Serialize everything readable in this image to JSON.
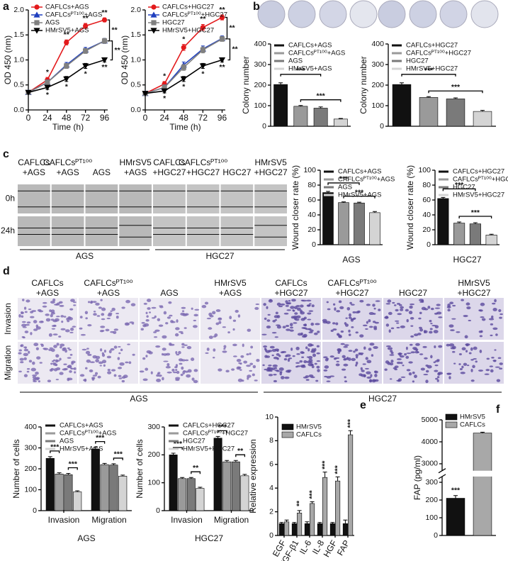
{
  "chart_data": [
    {
      "type": "line",
      "panel": "a",
      "x": [
        0,
        24,
        48,
        72,
        96
      ],
      "xlim": [
        0,
        100
      ],
      "xticks": [
        0,
        24,
        48,
        72,
        96
      ],
      "ylim": [
        0,
        2
      ],
      "yticks": [
        {
          "value": 0,
          "label": "0.0"
        },
        {
          "value": 0.5,
          "label": "0.5"
        },
        {
          "value": 1,
          "label": "1.0"
        },
        {
          "value": 1.5,
          "label": "1.5"
        },
        {
          "value": 2,
          "label": "2.0"
        }
      ],
      "xlabel": "Time (h)",
      "ylabel": "OD 450 (nm)",
      "series": [
        {
          "name": "CAFLCs+AGS",
          "color": "#e31a1c",
          "marker": "circle",
          "values": [
            0.35,
            0.6,
            1.35,
            1.68,
            1.8
          ],
          "errors": [
            0.02,
            0.05,
            0.05,
            0.05,
            0.04
          ],
          "significance": [
            null,
            "*",
            "**",
            "**",
            "**"
          ]
        },
        {
          "name": "CAFLCsᴾᵀ¹⁰⁰+AGS",
          "color": "#1f3fbf",
          "marker": "triangle",
          "values": [
            0.35,
            0.55,
            0.9,
            1.2,
            1.38
          ],
          "errors": [
            0.02,
            0.05,
            0.05,
            0.05,
            0.05
          ],
          "significance": [
            null,
            null,
            null,
            null,
            null
          ]
        },
        {
          "name": "AGS",
          "color": "#808080",
          "marker": "square",
          "values": [
            0.35,
            0.55,
            0.88,
            1.18,
            1.38
          ],
          "errors": [
            0.02,
            0.05,
            0.05,
            0.05,
            0.05
          ],
          "significance": [
            null,
            null,
            null,
            null,
            null
          ]
        },
        {
          "name": "HMrSV5+AGS",
          "color": "#000000",
          "marker": "triangle-down",
          "values": [
            0.35,
            0.45,
            0.62,
            0.88,
            1.0
          ],
          "errors": [
            0.02,
            0.04,
            0.05,
            0.05,
            0.04
          ],
          "significance": [
            null,
            "*",
            "*",
            "*",
            "**"
          ]
        }
      ],
      "brackets": [
        {
          "from": 0,
          "to": 2,
          "label": "**"
        },
        {
          "from": 2,
          "to": 3,
          "label": "**"
        }
      ]
    },
    {
      "type": "line",
      "x": [
        0,
        24,
        48,
        72,
        96
      ],
      "xlim": [
        0,
        100
      ],
      "xticks": [
        0,
        24,
        48,
        72,
        96
      ],
      "ylim": [
        0,
        2
      ],
      "yticks": [
        {
          "value": 0,
          "label": "0.0"
        },
        {
          "value": 0.5,
          "label": "0.5"
        },
        {
          "value": 1,
          "label": "1.0"
        },
        {
          "value": 1.5,
          "label": "1.5"
        },
        {
          "value": 2,
          "label": "2.0"
        }
      ],
      "xlabel": "Time (h)",
      "ylabel": "OD 450 (nm)",
      "series": [
        {
          "name": "CAFLCs+HGC27",
          "color": "#e31a1c",
          "marker": "circle",
          "values": [
            0.33,
            0.52,
            1.25,
            1.65,
            1.85
          ],
          "errors": [
            0.02,
            0.05,
            0.06,
            0.06,
            0.05
          ],
          "significance": [
            null,
            "*",
            "*",
            "**",
            "**"
          ]
        },
        {
          "name": "CAFLCsᴾᵀ¹⁰⁰+HGC27",
          "color": "#1f3fbf",
          "marker": "triangle",
          "values": [
            0.33,
            0.45,
            0.9,
            1.22,
            1.43
          ],
          "errors": [
            0.02,
            0.05,
            0.06,
            0.06,
            0.05
          ],
          "significance": [
            null,
            null,
            null,
            null,
            null
          ]
        },
        {
          "name": "HGC27",
          "color": "#808080",
          "marker": "square",
          "values": [
            0.33,
            0.45,
            0.85,
            1.2,
            1.42
          ],
          "errors": [
            0.02,
            0.05,
            0.06,
            0.06,
            0.05
          ],
          "significance": [
            null,
            null,
            null,
            null,
            null
          ]
        },
        {
          "name": "HMrSV5+HGC27",
          "color": "#000000",
          "marker": "triangle-down",
          "values": [
            0.33,
            0.38,
            0.62,
            0.88,
            1.0
          ],
          "errors": [
            0.02,
            0.04,
            0.05,
            0.05,
            0.04
          ],
          "significance": [
            null,
            "*",
            "*",
            "*",
            "**"
          ]
        }
      ],
      "brackets": [
        {
          "from": 0,
          "to": 2,
          "label": "**"
        },
        {
          "from": 2,
          "to": 3,
          "label": "**"
        }
      ]
    },
    {
      "type": "bar",
      "panel": "b",
      "categories": [
        "CAFLCs+AGS",
        "CAFLCsᴾᵀ¹⁰⁰+AGS",
        "AGS",
        "HMrSV5+AGS"
      ],
      "values": [
        203,
        97,
        88,
        35
      ],
      "errors": [
        8,
        4,
        6,
        3
      ],
      "colors": [
        "#111111",
        "#9a9a9a",
        "#7a7a7a",
        "#d4d4d4"
      ],
      "ylim": [
        0,
        400
      ],
      "yticks": [
        0,
        100,
        200,
        300,
        400
      ],
      "ylabel": "Colony number",
      "brackets": [
        {
          "from": 0,
          "to": 2,
          "label": "***"
        },
        {
          "from": 1,
          "to": 3,
          "label": "***"
        }
      ]
    },
    {
      "type": "bar",
      "categories": [
        "CAFLCs+HGC27",
        "CAFLCsᴾᵀ¹⁰⁰+HGC27",
        "HGC27",
        "HMrSV5+HGC27"
      ],
      "values": [
        203,
        140,
        133,
        72
      ],
      "errors": [
        8,
        4,
        5,
        5
      ],
      "colors": [
        "#111111",
        "#9a9a9a",
        "#7a7a7a",
        "#d4d4d4"
      ],
      "ylim": [
        0,
        400
      ],
      "yticks": [
        0,
        100,
        200,
        300,
        400
      ],
      "ylabel": "Colony number",
      "brackets": [
        {
          "from": 0,
          "to": 2,
          "label": "***"
        },
        {
          "from": 1,
          "to": 3,
          "label": "***"
        }
      ]
    },
    {
      "type": "bar",
      "categories": [
        "CAFLCs+AGS",
        "CAFLCsᴾᵀ¹⁰⁰+AGS",
        "AGS",
        "HMrSV5+AGS"
      ],
      "values": [
        70,
        56.5,
        56,
        43
      ],
      "errors": [
        1.5,
        1,
        1,
        1.5
      ],
      "colors": [
        "#111111",
        "#9a9a9a",
        "#7a7a7a",
        "#d4d4d4"
      ],
      "ylim": [
        0,
        100
      ],
      "yticks": [
        0,
        20,
        40,
        60,
        80,
        100
      ],
      "ylabel": "Wound closer rate (%)",
      "xlabel": "AGS",
      "brackets": [
        {
          "from": 0,
          "to": 2,
          "label": "***"
        },
        {
          "from": 1,
          "to": 3,
          "label": "***"
        }
      ]
    },
    {
      "type": "bar",
      "categories": [
        "CAFLCs+HGC27",
        "CAFLCsᴾᵀ¹⁰⁰+HGC27",
        "HGC27",
        "HMrSV5+HGC27"
      ],
      "values": [
        62,
        29,
        28,
        13
      ],
      "errors": [
        1.5,
        1.5,
        1.5,
        1
      ],
      "colors": [
        "#111111",
        "#9a9a9a",
        "#7a7a7a",
        "#d4d4d4"
      ],
      "ylim": [
        0,
        100
      ],
      "yticks": [
        0,
        20,
        40,
        60,
        80,
        100
      ],
      "ylabel": "Wound closer rate (%)",
      "xlabel": "HGC27",
      "brackets": [
        {
          "from": 0,
          "to": 2,
          "label": "***"
        },
        {
          "from": 1,
          "to": 3,
          "label": "***"
        }
      ]
    },
    {
      "type": "grouped_bar",
      "categories": [
        "Invasion",
        "Migration"
      ],
      "ylim": [
        0,
        400
      ],
      "yticks": [
        0,
        100,
        200,
        300,
        400
      ],
      "ylabel": "Number of cells",
      "xlabel": "AGS",
      "series": [
        {
          "name": "CAFLCs+AGS",
          "color": "#111111",
          "values": [
            250,
            295
          ],
          "errors": [
            8,
            8
          ]
        },
        {
          "name": "CAFLCsᴾᵀ¹⁰⁰+AGS",
          "color": "#9a9a9a",
          "values": [
            175,
            220
          ],
          "errors": [
            6,
            6
          ]
        },
        {
          "name": "AGS",
          "color": "#7a7a7a",
          "values": [
            172,
            218
          ],
          "errors": [
            6,
            6
          ]
        },
        {
          "name": "HMrSV5+AGS",
          "color": "#d4d4d4",
          "values": [
            90,
            165
          ],
          "errors": [
            5,
            5
          ]
        }
      ],
      "brackets": [
        {
          "category": 0,
          "from": 0,
          "to": 1,
          "label": "***"
        },
        {
          "category": 0,
          "from": 2,
          "to": 3,
          "label": "***"
        },
        {
          "category": 1,
          "from": 0,
          "to": 1,
          "label": "***"
        },
        {
          "category": 1,
          "from": 2,
          "to": 3,
          "label": "***"
        }
      ]
    },
    {
      "type": "grouped_bar",
      "categories": [
        "Invasion",
        "Migration"
      ],
      "ylim": [
        0,
        300
      ],
      "yticks": [
        0,
        100,
        200,
        300
      ],
      "ylabel": "Number of cells",
      "xlabel": "HGC27",
      "series": [
        {
          "name": "CAFLCs+HGC27",
          "color": "#111111",
          "values": [
            200,
            260
          ],
          "errors": [
            6,
            6
          ]
        },
        {
          "name": "CAFLCsᴾᵀ¹⁰⁰+HGC27",
          "color": "#9a9a9a",
          "values": [
            115,
            175
          ],
          "errors": [
            4,
            5
          ]
        },
        {
          "name": "HGC27",
          "color": "#7a7a7a",
          "values": [
            115,
            175
          ],
          "errors": [
            4,
            5
          ]
        },
        {
          "name": "HMrSV5+HGC27",
          "color": "#d4d4d4",
          "values": [
            80,
            125
          ],
          "errors": [
            4,
            5
          ]
        }
      ],
      "brackets": [
        {
          "category": 0,
          "from": 0,
          "to": 1,
          "label": "***"
        },
        {
          "category": 0,
          "from": 2,
          "to": 3,
          "label": "**"
        },
        {
          "category": 1,
          "from": 0,
          "to": 1,
          "label": "***"
        },
        {
          "category": 1,
          "from": 2,
          "to": 3,
          "label": "**"
        }
      ]
    },
    {
      "type": "grouped_bar",
      "panel": "e",
      "categories": [
        "EGF",
        "TGF-β1",
        "IL-6",
        "IL-8",
        "HGF",
        "FAP"
      ],
      "ylim": [
        0,
        10
      ],
      "yticks": [
        0,
        2,
        4,
        6,
        8,
        10
      ],
      "ylabel": "Relative expression",
      "series": [
        {
          "name": "HMrSV5",
          "color": "#111111",
          "values": [
            1,
            1,
            1,
            1,
            1,
            1
          ],
          "errors": [
            0.1,
            0.1,
            0.15,
            0.1,
            0.1,
            0.3
          ]
        },
        {
          "name": "CAFLCs",
          "color": "#a8a8a8",
          "values": [
            1.15,
            1.9,
            2.7,
            4.9,
            4.6,
            8.5
          ],
          "errors": [
            0.15,
            0.2,
            0.15,
            0.45,
            0.35,
            0.35
          ],
          "significance": [
            null,
            "**",
            "***",
            "***",
            "***",
            "***"
          ]
        }
      ]
    },
    {
      "type": "bar",
      "panel": "f",
      "broken_axis": true,
      "categories": [
        "HMrSV5",
        "CAFLCs"
      ],
      "values": [
        210,
        4400
      ],
      "errors": [
        15,
        40
      ],
      "significance": [
        "***",
        null
      ],
      "colors": [
        "#111111",
        "#a8a8a8"
      ],
      "ylim": [
        0,
        5000
      ],
      "yticks": [
        0,
        100,
        200,
        300,
        3000,
        4000,
        5000
      ],
      "ylabel": "FAP (pg/ml)"
    }
  ],
  "wound_images": {
    "panel": "c",
    "columns": [
      [
        "CAFLCs",
        "+AGS"
      ],
      [
        "CAFLCsᴾᵀ¹⁰⁰",
        "+AGS"
      ],
      [
        "AGS"
      ],
      [
        "HMrSV5",
        "+AGS"
      ],
      [
        "CAFLCs",
        "+HGC27"
      ],
      [
        "CAFLCsᴾᵀ¹⁰⁰",
        "+HGC27"
      ],
      [
        "HGC27"
      ],
      [
        "HMrSV5",
        "+HGC27"
      ]
    ],
    "rows": [
      "0h",
      "24h"
    ],
    "groups": [
      "AGS",
      "HGC27"
    ]
  },
  "transwell_images": {
    "panel": "d",
    "columns": [
      [
        "CAFLCs",
        "+AGS"
      ],
      [
        "CAFLCsᴾᵀ¹⁰⁰",
        "+AGS"
      ],
      [
        "AGS"
      ],
      [
        "HMrSV5",
        "+AGS"
      ],
      [
        "CAFLCs",
        "+HGC27"
      ],
      [
        "CAFLCsᴾᵀ¹⁰⁰",
        "+HGC27"
      ],
      [
        "HGC27"
      ],
      [
        "HMrSV5",
        "+HGC27"
      ]
    ],
    "rows": [
      "Invasion",
      "Migration"
    ],
    "groups": [
      "AGS",
      "HGC27"
    ]
  }
}
